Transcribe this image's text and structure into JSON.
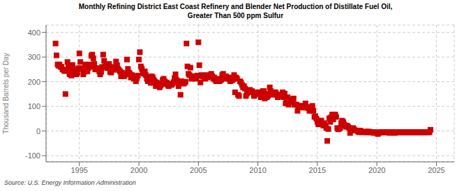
{
  "chart_data": {
    "type": "scatter",
    "title": "Monthly Refining District East Coast Refinery and Blender Net Production of Distillate Fuel Oil,",
    "subtitle": "Greater Than 500 ppm Sulfur",
    "y_label": "Thousand Barrels per Day",
    "annotations": [
      "Source: U.S. Energy Information Administration"
    ],
    "color": "#cc0000",
    "marker": "square",
    "grid": true,
    "xlim": [
      1992.2,
      2026.5
    ],
    "ylim": [
      -125,
      430
    ],
    "xticks": [
      1995,
      2000,
      2005,
      2010,
      2015,
      2020,
      2025
    ],
    "yticks": [
      -100,
      0,
      100,
      200,
      300,
      400
    ],
    "x": [
      1993.0,
      1993.08,
      1993.17,
      1993.25,
      1993.33,
      1993.42,
      1993.5,
      1993.58,
      1993.67,
      1993.75,
      1993.83,
      1993.92,
      1994.0,
      1994.08,
      1994.17,
      1994.25,
      1994.33,
      1994.42,
      1994.5,
      1994.58,
      1994.67,
      1994.75,
      1994.83,
      1994.92,
      1995.0,
      1995.08,
      1995.17,
      1995.25,
      1995.33,
      1995.42,
      1995.5,
      1995.58,
      1995.67,
      1995.75,
      1995.83,
      1995.92,
      1996.0,
      1996.08,
      1996.17,
      1996.25,
      1996.33,
      1996.42,
      1996.5,
      1996.58,
      1996.67,
      1996.75,
      1996.83,
      1996.92,
      1997.0,
      1997.08,
      1997.17,
      1997.25,
      1997.33,
      1997.42,
      1997.5,
      1997.58,
      1997.67,
      1997.75,
      1997.83,
      1997.92,
      1998.0,
      1998.08,
      1998.17,
      1998.25,
      1998.33,
      1998.42,
      1998.5,
      1998.58,
      1998.67,
      1998.75,
      1998.83,
      1998.92,
      1999.0,
      1999.08,
      1999.17,
      1999.25,
      1999.33,
      1999.42,
      1999.5,
      1999.58,
      1999.67,
      1999.75,
      1999.83,
      1999.92,
      2000.0,
      2000.08,
      2000.17,
      2000.25,
      2000.33,
      2000.42,
      2000.5,
      2000.58,
      2000.67,
      2000.75,
      2000.83,
      2000.92,
      2001.0,
      2001.08,
      2001.17,
      2001.25,
      2001.33,
      2001.42,
      2001.5,
      2001.58,
      2001.67,
      2001.75,
      2001.83,
      2001.92,
      2002.0,
      2002.08,
      2002.17,
      2002.25,
      2002.33,
      2002.42,
      2002.5,
      2002.58,
      2002.67,
      2002.75,
      2002.83,
      2002.92,
      2003.0,
      2003.08,
      2003.17,
      2003.25,
      2003.33,
      2003.42,
      2003.5,
      2003.58,
      2003.67,
      2003.75,
      2003.83,
      2003.92,
      2004.0,
      2004.08,
      2004.17,
      2004.25,
      2004.33,
      2004.42,
      2004.5,
      2004.58,
      2004.67,
      2004.75,
      2004.83,
      2004.92,
      2005.0,
      2005.08,
      2005.17,
      2005.25,
      2005.33,
      2005.42,
      2005.5,
      2005.58,
      2005.67,
      2005.75,
      2005.83,
      2005.92,
      2006.0,
      2006.08,
      2006.17,
      2006.25,
      2006.33,
      2006.42,
      2006.5,
      2006.58,
      2006.67,
      2006.75,
      2006.83,
      2006.92,
      2007.0,
      2007.08,
      2007.17,
      2007.25,
      2007.33,
      2007.42,
      2007.5,
      2007.58,
      2007.67,
      2007.75,
      2007.83,
      2007.92,
      2008.0,
      2008.08,
      2008.17,
      2008.25,
      2008.33,
      2008.42,
      2008.5,
      2008.58,
      2008.67,
      2008.75,
      2008.83,
      2008.92,
      2009.0,
      2009.08,
      2009.17,
      2009.25,
      2009.33,
      2009.42,
      2009.5,
      2009.58,
      2009.67,
      2009.75,
      2009.83,
      2009.92,
      2010.0,
      2010.08,
      2010.17,
      2010.25,
      2010.33,
      2010.42,
      2010.5,
      2010.58,
      2010.67,
      2010.75,
      2010.83,
      2010.92,
      2011.0,
      2011.08,
      2011.17,
      2011.25,
      2011.33,
      2011.42,
      2011.5,
      2011.58,
      2011.67,
      2011.75,
      2011.83,
      2011.92,
      2012.0,
      2012.08,
      2012.17,
      2012.25,
      2012.33,
      2012.42,
      2012.5,
      2012.58,
      2012.67,
      2012.75,
      2012.83,
      2012.92,
      2013.0,
      2013.08,
      2013.17,
      2013.25,
      2013.33,
      2013.42,
      2013.5,
      2013.58,
      2013.67,
      2013.75,
      2013.83,
      2013.92,
      2014.0,
      2014.08,
      2014.17,
      2014.25,
      2014.33,
      2014.42,
      2014.5,
      2014.58,
      2014.67,
      2014.75,
      2014.83,
      2014.92,
      2015.0,
      2015.08,
      2015.17,
      2015.25,
      2015.33,
      2015.42,
      2015.5,
      2015.58,
      2015.67,
      2015.75,
      2015.83,
      2015.92,
      2016.0,
      2016.08,
      2016.17,
      2016.25,
      2016.33,
      2016.42,
      2016.5,
      2016.58,
      2016.67,
      2016.75,
      2016.83,
      2016.92,
      2017.0,
      2017.08,
      2017.17,
      2017.25,
      2017.33,
      2017.42,
      2017.5,
      2017.58,
      2017.67,
      2017.75,
      2017.83,
      2017.92,
      2018.0,
      2018.08,
      2018.17,
      2018.25,
      2018.33,
      2018.42,
      2018.5,
      2018.58,
      2018.67,
      2018.75,
      2018.83,
      2018.92,
      2019.0,
      2019.08,
      2019.17,
      2019.25,
      2019.33,
      2019.42,
      2019.5,
      2019.58,
      2019.67,
      2019.75,
      2019.83,
      2019.92,
      2020.0,
      2020.08,
      2020.17,
      2020.25,
      2020.33,
      2020.42,
      2020.5,
      2020.58,
      2020.67,
      2020.75,
      2020.83,
      2020.92,
      2021.0,
      2021.08,
      2021.17,
      2021.25,
      2021.33,
      2021.42,
      2021.5,
      2021.58,
      2021.67,
      2021.75,
      2021.83,
      2021.92,
      2022.0,
      2022.08,
      2022.17,
      2022.25,
      2022.33,
      2022.42,
      2022.5,
      2022.58,
      2022.67,
      2022.75,
      2022.83,
      2022.92,
      2023.0,
      2023.08,
      2023.17,
      2023.25,
      2023.33,
      2023.42,
      2023.5,
      2023.58,
      2023.67,
      2023.75,
      2023.83,
      2023.92,
      2024.0,
      2024.08,
      2024.17,
      2024.25,
      2024.33,
      2024.42,
      2024.5
    ],
    "values": [
      355,
      307,
      270,
      265,
      270,
      260,
      260,
      250,
      248,
      243,
      150,
      245,
      280,
      260,
      230,
      238,
      225,
      268,
      250,
      245,
      232,
      230,
      235,
      255,
      315,
      280,
      255,
      252,
      230,
      240,
      270,
      260,
      242,
      255,
      270,
      260,
      305,
      310,
      295,
      272,
      250,
      252,
      255,
      252,
      242,
      230,
      240,
      260,
      310,
      285,
      262,
      265,
      255,
      262,
      272,
      240,
      237,
      252,
      248,
      260,
      255,
      282,
      267,
      252,
      247,
      242,
      222,
      237,
      227,
      222,
      228,
      232,
      290,
      252,
      237,
      232,
      217,
      227,
      222,
      212,
      222,
      202,
      215,
      225,
      290,
      320,
      262,
      252,
      237,
      232,
      242,
      227,
      212,
      202,
      210,
      218,
      195,
      222,
      217,
      207,
      202,
      182,
      197,
      192,
      187,
      177,
      185,
      190,
      207,
      212,
      202,
      192,
      197,
      187,
      182,
      187,
      192,
      187,
      192,
      198,
      215,
      230,
      207,
      202,
      182,
      197,
      147,
      202,
      197,
      192,
      195,
      200,
      355,
      262,
      232,
      227,
      257,
      212,
      222,
      217,
      222,
      212,
      218,
      225,
      360,
      267,
      197,
      227,
      222,
      222,
      217,
      212,
      227,
      217,
      220,
      222,
      222,
      232,
      222,
      212,
      217,
      207,
      202,
      202,
      212,
      202,
      205,
      208,
      227,
      232,
      217,
      212,
      222,
      217,
      212,
      217,
      202,
      207,
      205,
      210,
      227,
      157,
      217,
      212,
      147,
      142,
      202,
      197,
      187,
      177,
      182,
      172,
      142,
      152,
      162,
      157,
      167,
      157,
      162,
      157,
      142,
      147,
      150,
      155,
      157,
      157,
      157,
      137,
      147,
      162,
      162,
      132,
      152,
      137,
      142,
      148,
      177,
      162,
      157,
      147,
      157,
      157,
      157,
      147,
      137,
      142,
      145,
      148,
      147,
      157,
      137,
      152,
      112,
      117,
      137,
      107,
      117,
      127,
      122,
      128,
      132,
      107,
      107,
      107,
      82,
      97,
      102,
      102,
      97,
      97,
      95,
      100,
      112,
      97,
      97,
      92,
      82,
      87,
      82,
      102,
      82,
      57,
      60,
      50,
      37,
      27,
      32,
      42,
      42,
      27,
      22,
      32,
      22,
      12,
      -40,
      8,
      52,
      37,
      57,
      67,
      47,
      62,
      67,
      57,
      12,
      7,
      10,
      12,
      32,
      42,
      37,
      27,
      22,
      17,
      22,
      17,
      12,
      -8,
      8,
      5,
      12,
      7,
      2,
      2,
      2,
      -2,
      -5,
      2,
      -2,
      -5,
      -3,
      -4,
      -5,
      -2,
      -5,
      -5,
      -2,
      -5,
      -5,
      -5,
      -5,
      -8,
      -5,
      -5,
      -8,
      -12,
      -8,
      -5,
      -5,
      -5,
      -5,
      -5,
      -5,
      -5,
      -5,
      -5,
      -5,
      -8,
      -5,
      -5,
      -5,
      -5,
      -8,
      -5,
      -5,
      -5,
      -5,
      -5,
      -5,
      -5,
      -5,
      -5,
      -5,
      -5,
      -5,
      -5,
      -5,
      -5,
      -5,
      -5,
      -5,
      -5,
      -5,
      -5,
      -5,
      -5,
      -5,
      -5,
      -5,
      -5,
      -5,
      -5,
      -5,
      -5,
      -5,
      -5,
      -5,
      -5,
      5
    ]
  }
}
